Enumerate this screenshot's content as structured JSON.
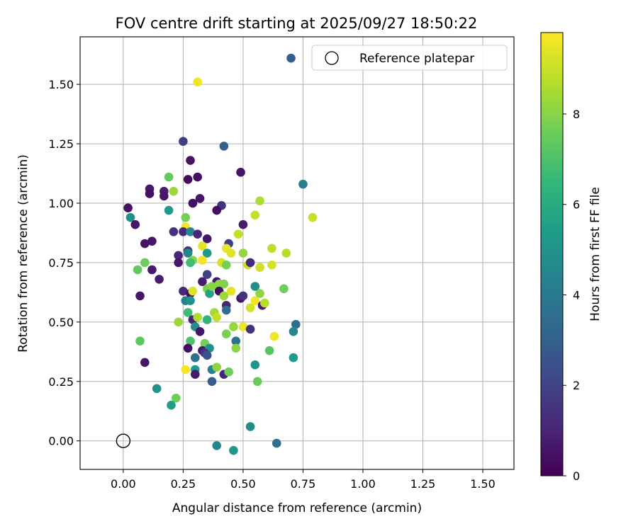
{
  "chart_data": {
    "type": "scatter",
    "title": "FOV centre drift starting at 2025/09/27 18:50:22",
    "xlabel": "Angular distance from reference (arcmin)",
    "ylabel": "Rotation from reference (arcmin)",
    "xlim": [
      -0.18,
      1.63
    ],
    "ylim": [
      -0.12,
      1.7
    ],
    "xticks": [
      0.0,
      0.25,
      0.5,
      0.75,
      1.0,
      1.25,
      1.5
    ],
    "xtick_labels": [
      "0.00",
      "0.25",
      "0.50",
      "0.75",
      "1.00",
      "1.25",
      "1.50"
    ],
    "yticks": [
      0.0,
      0.25,
      0.5,
      0.75,
      1.0,
      1.25,
      1.5
    ],
    "ytick_labels": [
      "0.00",
      "0.25",
      "0.50",
      "0.75",
      "1.00",
      "1.25",
      "1.50"
    ],
    "grid": true,
    "legend": {
      "position": "top-right",
      "label": "Reference platepar"
    },
    "reference_point": [
      0.0,
      0.0
    ],
    "colorbar": {
      "label": "Hours from first FF file",
      "range": [
        0,
        9.8
      ],
      "ticks": [
        0,
        2,
        4,
        6,
        8
      ],
      "tick_labels": [
        "0",
        "2",
        "4",
        "6",
        "8"
      ],
      "colormap": [
        "#440154",
        "#482878",
        "#3e4989",
        "#31688e",
        "#26828e",
        "#1f9e89",
        "#35b779",
        "#6ece58",
        "#b5de2b",
        "#fde725"
      ]
    },
    "points": [
      [
        0.7,
        1.61,
        3.0
      ],
      [
        0.31,
        1.51,
        9.6
      ],
      [
        0.25,
        1.26,
        1.8
      ],
      [
        0.42,
        1.24,
        3.0
      ],
      [
        0.75,
        1.08,
        4.2
      ],
      [
        0.28,
        1.18,
        0.5
      ],
      [
        0.31,
        1.11,
        0.4
      ],
      [
        0.27,
        1.1,
        0.3
      ],
      [
        0.49,
        1.13,
        0.5
      ],
      [
        0.19,
        1.11,
        7.4
      ],
      [
        0.21,
        1.05,
        8.3
      ],
      [
        0.11,
        1.06,
        0.7
      ],
      [
        0.11,
        1.04,
        0.4
      ],
      [
        0.17,
        1.05,
        0.8
      ],
      [
        0.17,
        1.03,
        0.6
      ],
      [
        0.32,
        1.02,
        0.6
      ],
      [
        0.29,
        1.0,
        0.4
      ],
      [
        0.41,
        0.99,
        1.5
      ],
      [
        0.39,
        0.97,
        0.4
      ],
      [
        0.57,
        1.01,
        8.6
      ],
      [
        0.55,
        0.95,
        8.9
      ],
      [
        0.79,
        0.94,
        9.0
      ],
      [
        0.02,
        0.98,
        0.5
      ],
      [
        0.03,
        0.94,
        4.9
      ],
      [
        0.05,
        0.91,
        0.6
      ],
      [
        0.19,
        0.97,
        5.2
      ],
      [
        0.26,
        0.94,
        7.7
      ],
      [
        0.26,
        0.9,
        9.6
      ],
      [
        0.25,
        0.88,
        1.2
      ],
      [
        0.21,
        0.88,
        1.4
      ],
      [
        0.28,
        0.88,
        4.6
      ],
      [
        0.31,
        0.87,
        1.0
      ],
      [
        0.35,
        0.85,
        0.6
      ],
      [
        0.44,
        0.83,
        1.8
      ],
      [
        0.5,
        0.91,
        0.7
      ],
      [
        0.48,
        0.87,
        8.9
      ],
      [
        0.12,
        0.84,
        0.6
      ],
      [
        0.09,
        0.83,
        0.5
      ],
      [
        0.33,
        0.82,
        9.4
      ],
      [
        0.43,
        0.81,
        9.5
      ],
      [
        0.45,
        0.79,
        9.3
      ],
      [
        0.5,
        0.79,
        8.2
      ],
      [
        0.62,
        0.81,
        8.8
      ],
      [
        0.68,
        0.79,
        8.7
      ],
      [
        0.27,
        0.8,
        1.6
      ],
      [
        0.27,
        0.79,
        4.5
      ],
      [
        0.35,
        0.79,
        5.2
      ],
      [
        0.23,
        0.78,
        1.0
      ],
      [
        0.23,
        0.75,
        0.6
      ],
      [
        0.29,
        0.76,
        8.0
      ],
      [
        0.28,
        0.75,
        6.7
      ],
      [
        0.33,
        0.76,
        9.6
      ],
      [
        0.41,
        0.75,
        9.2
      ],
      [
        0.43,
        0.74,
        7.7
      ],
      [
        0.52,
        0.74,
        9.0
      ],
      [
        0.53,
        0.75,
        1.2
      ],
      [
        0.57,
        0.73,
        9.1
      ],
      [
        0.62,
        0.74,
        9.2
      ],
      [
        0.06,
        0.72,
        7.4
      ],
      [
        0.09,
        0.75,
        7.6
      ],
      [
        0.12,
        0.72,
        0.7
      ],
      [
        0.15,
        0.68,
        0.8
      ],
      [
        0.35,
        0.7,
        1.9
      ],
      [
        0.39,
        0.67,
        0.6
      ],
      [
        0.4,
        0.66,
        8.1
      ],
      [
        0.42,
        0.66,
        7.9
      ],
      [
        0.33,
        0.67,
        0.8
      ],
      [
        0.35,
        0.64,
        7.8
      ],
      [
        0.36,
        0.62,
        5.6
      ],
      [
        0.37,
        0.65,
        8.0
      ],
      [
        0.4,
        0.63,
        0.4
      ],
      [
        0.42,
        0.61,
        8.3
      ],
      [
        0.45,
        0.63,
        9.4
      ],
      [
        0.49,
        0.6,
        0.6
      ],
      [
        0.5,
        0.61,
        1.4
      ],
      [
        0.55,
        0.65,
        4.8
      ],
      [
        0.57,
        0.62,
        8.1
      ],
      [
        0.53,
        0.56,
        9.2
      ],
      [
        0.55,
        0.59,
        9.6
      ],
      [
        0.58,
        0.57,
        0.7
      ],
      [
        0.59,
        0.58,
        8.7
      ],
      [
        0.67,
        0.64,
        7.6
      ],
      [
        0.07,
        0.61,
        0.6
      ],
      [
        0.25,
        0.63,
        1.2
      ],
      [
        0.28,
        0.62,
        0.4
      ],
      [
        0.29,
        0.63,
        9.3
      ],
      [
        0.26,
        0.59,
        4.3
      ],
      [
        0.28,
        0.59,
        5.0
      ],
      [
        0.43,
        0.57,
        1.0
      ],
      [
        0.43,
        0.55,
        3.5
      ],
      [
        0.27,
        0.54,
        6.7
      ],
      [
        0.29,
        0.51,
        1.0
      ],
      [
        0.31,
        0.52,
        8.6
      ],
      [
        0.35,
        0.51,
        6.4
      ],
      [
        0.38,
        0.54,
        8.4
      ],
      [
        0.39,
        0.52,
        8.9
      ],
      [
        0.23,
        0.5,
        8.3
      ],
      [
        0.3,
        0.48,
        4.8
      ],
      [
        0.32,
        0.46,
        0.6
      ],
      [
        0.5,
        0.48,
        9.5
      ],
      [
        0.46,
        0.48,
        8.2
      ],
      [
        0.53,
        0.47,
        1.4
      ],
      [
        0.63,
        0.44,
        9.6
      ],
      [
        0.72,
        0.49,
        3.5
      ],
      [
        0.71,
        0.46,
        4.5
      ],
      [
        0.07,
        0.42,
        7.3
      ],
      [
        0.28,
        0.42,
        7.0
      ],
      [
        0.34,
        0.41,
        7.7
      ],
      [
        0.43,
        0.45,
        7.8
      ],
      [
        0.47,
        0.42,
        3.7
      ],
      [
        0.47,
        0.39,
        8.1
      ],
      [
        0.27,
        0.39,
        0.4
      ],
      [
        0.33,
        0.38,
        0.6
      ],
      [
        0.36,
        0.39,
        4.9
      ],
      [
        0.34,
        0.37,
        1.6
      ],
      [
        0.3,
        0.35,
        3.6
      ],
      [
        0.35,
        0.36,
        2.5
      ],
      [
        0.61,
        0.38,
        7.2
      ],
      [
        0.71,
        0.35,
        5.3
      ],
      [
        0.09,
        0.33,
        0.6
      ],
      [
        0.55,
        0.32,
        5.1
      ],
      [
        0.3,
        0.3,
        5.3
      ],
      [
        0.37,
        0.3,
        4.4
      ],
      [
        0.39,
        0.31,
        8.1
      ],
      [
        0.42,
        0.28,
        1.0
      ],
      [
        0.44,
        0.29,
        7.6
      ],
      [
        0.26,
        0.3,
        9.7
      ],
      [
        0.3,
        0.28,
        0.7
      ],
      [
        0.37,
        0.25,
        2.9
      ],
      [
        0.56,
        0.25,
        7.5
      ],
      [
        0.14,
        0.22,
        5.0
      ],
      [
        0.22,
        0.18,
        7.6
      ],
      [
        0.2,
        0.15,
        5.5
      ],
      [
        0.53,
        0.06,
        4.8
      ],
      [
        0.39,
        -0.02,
        4.5
      ],
      [
        0.46,
        -0.04,
        5.2
      ],
      [
        0.64,
        -0.01,
        3.6
      ]
    ]
  }
}
